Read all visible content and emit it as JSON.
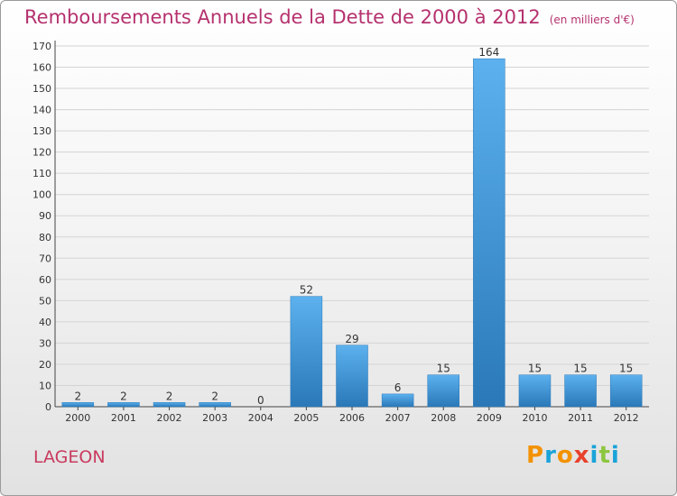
{
  "title": "Remboursements Annuels de la Dette de 2000 à 2012",
  "unit": "(en milliers d'€)",
  "place": "LAGEON",
  "logo": {
    "text": "Proxiti",
    "letters": [
      "P",
      "r",
      "o",
      "x",
      "i",
      "t",
      "i"
    ],
    "colors": [
      "#f39200",
      "#1aa3d8",
      "#f39200",
      "#e8412c",
      "#1aa3d8",
      "#8cc63f",
      "#1aa3d8"
    ]
  },
  "chart_data": {
    "type": "bar",
    "categories": [
      "2000",
      "2001",
      "2002",
      "2003",
      "2004",
      "2005",
      "2006",
      "2007",
      "2008",
      "2009",
      "2010",
      "2011",
      "2012"
    ],
    "values": [
      2,
      2,
      2,
      2,
      0,
      52,
      29,
      6,
      15,
      164,
      15,
      15,
      15
    ],
    "ylim": [
      0,
      170
    ],
    "yticks": [
      0,
      10,
      20,
      30,
      40,
      50,
      60,
      70,
      80,
      90,
      100,
      110,
      120,
      130,
      140,
      150,
      160,
      170
    ],
    "grid": true,
    "bar_color": "#3d98dc"
  }
}
